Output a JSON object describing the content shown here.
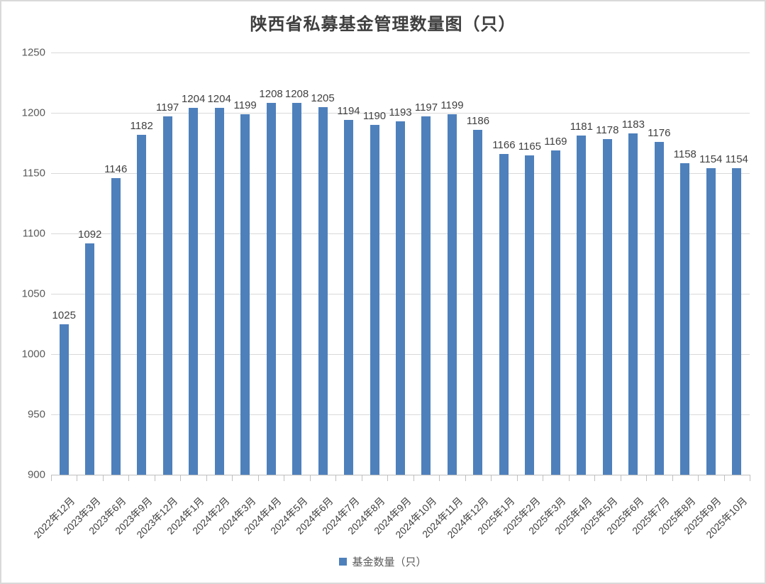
{
  "chart": {
    "title": "陕西省私募基金管理数量图（只）",
    "legend_label": "基金数量（只）"
  },
  "chart_data": {
    "type": "bar",
    "title": "陕西省私募基金管理数量图（只）",
    "categories": [
      "2022年12月",
      "2023年3月",
      "2023年6月",
      "2023年9月",
      "2023年12月",
      "2024年1月",
      "2024年2月",
      "2024年3月",
      "2024年4月",
      "2024年5月",
      "2024年6月",
      "2024年7月",
      "2024年8月",
      "2024年9月",
      "2024年10月",
      "2024年11月",
      "2024年12月",
      "2025年1月",
      "2025年2月",
      "2025年3月",
      "2025年4月",
      "2025年5月",
      "2025年6月",
      "2025年7月",
      "2025年8月",
      "2025年9月",
      "2025年10月"
    ],
    "series": [
      {
        "name": "基金数量（只）",
        "values": [
          1025,
          1092,
          1146,
          1182,
          1197,
          1204,
          1204,
          1199,
          1208,
          1208,
          1205,
          1194,
          1190,
          1193,
          1197,
          1199,
          1186,
          1166,
          1165,
          1169,
          1181,
          1178,
          1183,
          1176,
          1158,
          1154,
          1154
        ]
      }
    ],
    "xlabel": "",
    "ylabel": "",
    "ylim": [
      900,
      1250
    ],
    "yticks": [
      900,
      950,
      1000,
      1050,
      1100,
      1150,
      1200,
      1250
    ],
    "grid": true,
    "data_labels": true,
    "legend_position": "bottom",
    "bar_color": "#4e80bc",
    "gridline_color": "#d9d9d9",
    "axisline_color": "#bfbfbf",
    "label_color": "#404040",
    "tick_color": "#595959"
  }
}
